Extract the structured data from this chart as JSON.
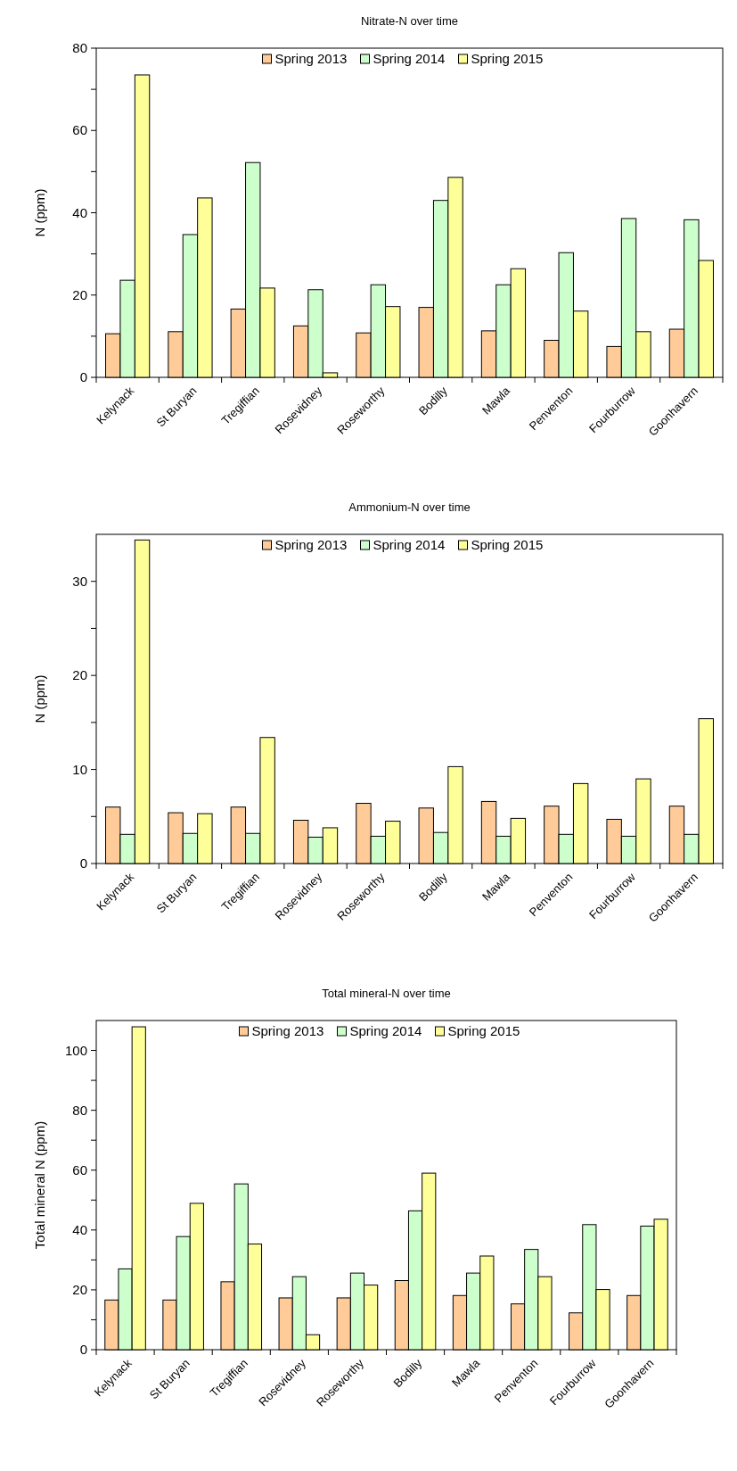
{
  "chart_data": [
    {
      "type": "bar",
      "title": "Nitrate-N over time",
      "ylabel": "N (ppm)",
      "categories": [
        "Kelynack",
        "St Buryan",
        "Tregiffian",
        "Rosevidney",
        "Roseworthy",
        "Bodilly",
        "Mawla",
        "Penventon",
        "Fourburrow",
        "Goonhavern"
      ],
      "series": [
        {
          "name": "Spring 2013",
          "color": "#ffcc99",
          "values": [
            10.6,
            11.1,
            16.6,
            12.5,
            10.8,
            17.0,
            11.3,
            9.0,
            7.5,
            11.7
          ]
        },
        {
          "name": "Spring 2014",
          "color": "#ccffcc",
          "values": [
            23.6,
            34.7,
            52.2,
            21.3,
            22.5,
            43.0,
            22.5,
            30.3,
            38.6,
            38.3
          ]
        },
        {
          "name": "Spring 2015",
          "color": "#ffff99",
          "values": [
            73.5,
            43.6,
            21.7,
            1.1,
            17.2,
            48.6,
            26.4,
            16.1,
            11.1,
            28.4
          ]
        }
      ],
      "ylim": [
        0,
        80
      ],
      "yticks": [
        0,
        {
          "value": 10,
          "label": null
        },
        20,
        {
          "value": 30,
          "label": null
        },
        40,
        {
          "value": 50,
          "label": null
        },
        60,
        {
          "value": 70,
          "label": null
        },
        80
      ],
      "legend": "top"
    },
    {
      "type": "bar",
      "title": "Ammonium-N over time",
      "ylabel": "N (ppm)",
      "categories": [
        "Kelynack",
        "St Buryan",
        "Tregiffian",
        "Rosevidney",
        "Roseworthy",
        "Bodilly",
        "Mawla",
        "Penventon",
        "Fourburrow",
        "Goonhavern"
      ],
      "series": [
        {
          "name": "Spring 2013",
          "color": "#ffcc99",
          "values": [
            6.0,
            5.4,
            6.0,
            4.6,
            6.4,
            5.9,
            6.6,
            6.1,
            4.7,
            6.1
          ]
        },
        {
          "name": "Spring 2014",
          "color": "#ccffcc",
          "values": [
            3.1,
            3.2,
            3.2,
            2.8,
            2.9,
            3.3,
            2.9,
            3.1,
            2.9,
            3.1
          ]
        },
        {
          "name": "Spring 2015",
          "color": "#ffff99",
          "values": [
            34.4,
            5.3,
            13.4,
            3.8,
            4.5,
            10.3,
            4.8,
            8.5,
            9.0,
            15.4
          ]
        }
      ],
      "ylim": [
        0,
        35
      ],
      "yticks": [
        0,
        {
          "value": 5,
          "label": null
        },
        10,
        {
          "value": 15,
          "label": null
        },
        20,
        {
          "value": 25,
          "label": null
        },
        30
      ],
      "legend": "top"
    },
    {
      "type": "bar",
      "title": "Total mineral-N over time",
      "ylabel": "Total mineral N (ppm)",
      "categories": [
        "Kelynack",
        "St Buryan",
        "Tregiffian",
        "Rosevidney",
        "Roseworthy",
        "Bodilly",
        "Mawla",
        "Penventon",
        "Fourburrow",
        "Goonhavern"
      ],
      "series": [
        {
          "name": "Spring 2013",
          "color": "#ffcc99",
          "values": [
            16.6,
            16.6,
            22.7,
            17.3,
            17.3,
            23.1,
            18.1,
            15.3,
            12.3,
            18.1
          ]
        },
        {
          "name": "Spring 2014",
          "color": "#ccffcc",
          "values": [
            27.0,
            37.8,
            55.4,
            24.4,
            25.6,
            46.4,
            25.6,
            33.5,
            41.8,
            41.3
          ]
        },
        {
          "name": "Spring 2015",
          "color": "#ffff99",
          "values": [
            107.9,
            48.9,
            35.3,
            5.0,
            21.6,
            59.0,
            31.3,
            24.4,
            20.1,
            43.6
          ]
        }
      ],
      "ylim": [
        0,
        110
      ],
      "yticks": [
        0,
        {
          "value": 10,
          "label": null
        },
        20,
        {
          "value": 30,
          "label": null
        },
        40,
        {
          "value": 50,
          "label": null
        },
        60,
        {
          "value": 70,
          "label": null
        },
        80,
        {
          "value": 90,
          "label": null
        },
        100
      ],
      "legend": "top"
    }
  ]
}
